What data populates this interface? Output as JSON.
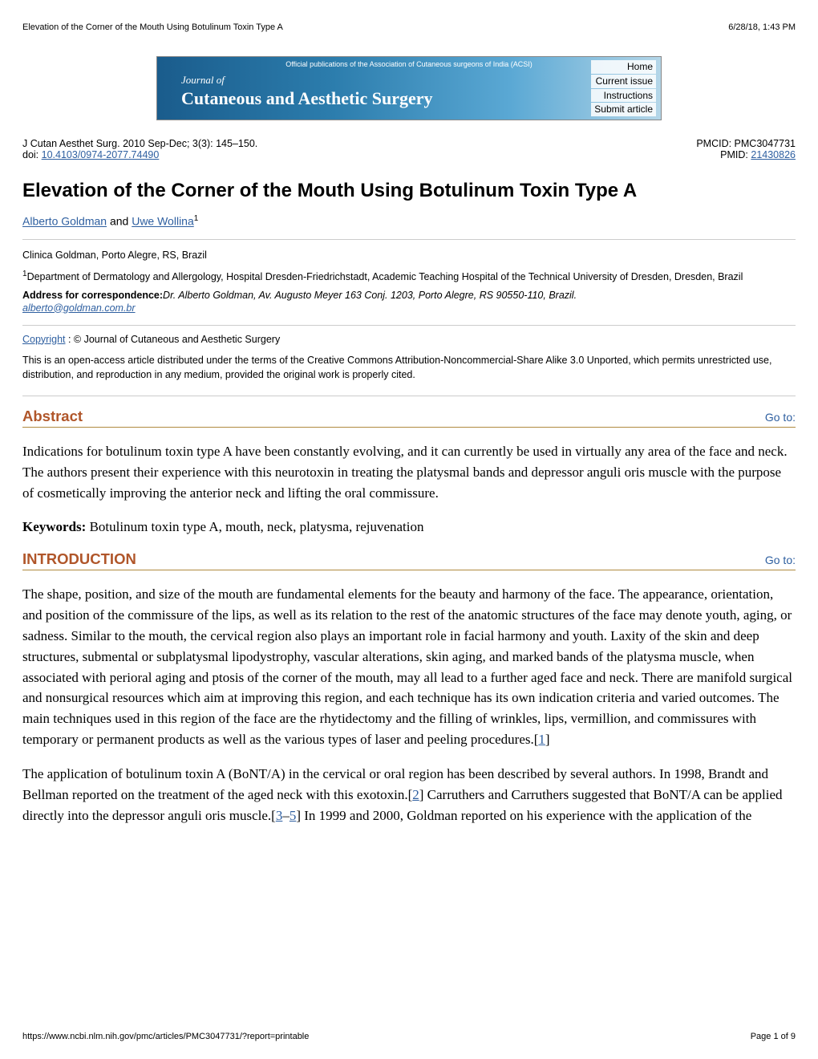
{
  "header": {
    "title": "Elevation of the Corner of the Mouth Using Botulinum Toxin Type A",
    "timestamp": "6/28/18, 1:43 PM"
  },
  "banner": {
    "subtitle": "Official publications of the Association of Cutaneous surgeons of India (ACSI)",
    "journal_of": "Journal of",
    "journal_title": "Cutaneous and Aesthetic Surgery",
    "links": {
      "home": "Home",
      "current_issue": "Current issue",
      "instructions": "Instructions",
      "submit": "Submit article"
    },
    "colors": {
      "bg_start": "#1a5c8c",
      "bg_end": "#b4d6e8"
    }
  },
  "meta": {
    "citation": "J Cutan Aesthet Surg. 2010 Sep-Dec; 3(3): 145–150.",
    "doi_label": "doi:  ",
    "doi": "10.4103/0974-2077.74490",
    "pmcid_label": "PMCID: ",
    "pmcid": "PMC3047731",
    "pmid_label": "PMID: ",
    "pmid": "21430826"
  },
  "article": {
    "title": "Elevation of the Corner of the Mouth Using Botulinum Toxin Type A",
    "authors": {
      "a1": "Alberto Goldman",
      "and": " and ",
      "a2": "Uwe Wollina",
      "sup": "1"
    },
    "affil1": "Clinica Goldman, Porto Alegre, RS, Brazil",
    "affil2_sup": "1",
    "affil2": "Department of Dermatology and Allergology, Hospital Dresden-Friedrichstadt, Academic Teaching Hospital of the Technical University of Dresden, Dresden, Brazil",
    "corr_label": "Address for correspondence:",
    "corr_text": "Dr. Alberto Goldman, Av. Augusto Meyer 163 Conj. 1203, Porto Alegre, RS 90550-110, Brazil.",
    "email": "alberto@goldman.com.br",
    "copyright_link": "Copyright",
    "copyright_text": " : © Journal of Cutaneous and Aesthetic Surgery",
    "license": "This is an open-access article distributed under the terms of the Creative Commons Attribution-Noncommercial-Share Alike 3.0 Unported, which permits unrestricted use, distribution, and reproduction in any medium, provided the original work is properly cited."
  },
  "sections": {
    "abstract": {
      "title": "Abstract",
      "goto": "Go to:",
      "text": "Indications for botulinum toxin type A have been constantly evolving, and it can currently be used in virtually any area of the face and neck. The authors present their experience with this neurotoxin in treating the platysmal bands and depressor anguli oris muscle with the purpose of cosmetically improving the anterior neck and lifting the oral commissure.",
      "keywords_label": "Keywords: ",
      "keywords": "Botulinum toxin type A, mouth, neck, platysma, rejuvenation"
    },
    "introduction": {
      "title": "INTRODUCTION",
      "goto": "Go to:",
      "p1a": "The shape, position, and size of the mouth are fundamental elements for the beauty and harmony of the face. The appearance, orientation, and position of the commissure of the lips, as well as its relation to the rest of the anatomic structures of the face may denote youth, aging, or sadness. Similar to the mouth, the cervical region also plays an important role in facial harmony and youth. Laxity of the skin and deep structures, submental or subplatysmal lipodystrophy, vascular alterations, skin aging, and marked bands of the platysma muscle, when associated with perioral aging and ptosis of the corner of the mouth, may all lead to a further aged face and neck. There are manifold surgical and nonsurgical resources which aim at improving this region, and each technique has its own indication criteria and varied outcomes. The main techniques used in this region of the face are the rhytidectomy and the filling of wrinkles, lips, vermillion, and commissures with temporary or permanent products as well as the various types of laser and peeling procedures.[",
      "ref1": "1",
      "p1b": "]",
      "p2a": "The application of botulinum toxin A (BoNT/A) in the cervical or oral region has been described by several authors. In 1998, Brandt and Bellman reported on the treatment of the aged neck with this exotoxin.[",
      "ref2": "2",
      "p2b": "] Carruthers and Carruthers suggested that BoNT/A can be applied directly into the depressor anguli oris muscle.[",
      "ref3": "3",
      "dash": "–",
      "ref5": "5",
      "p2c": "] In 1999 and 2000, Goldman reported on his experience with the application of the"
    }
  },
  "footer": {
    "url": "https://www.ncbi.nlm.nih.gov/pmc/articles/PMC3047731/?report=printable",
    "page": "Page 1 of 9"
  },
  "colors": {
    "link": "#2e5fa0",
    "section_title": "#b0562a",
    "section_rule": "#b08a40"
  }
}
